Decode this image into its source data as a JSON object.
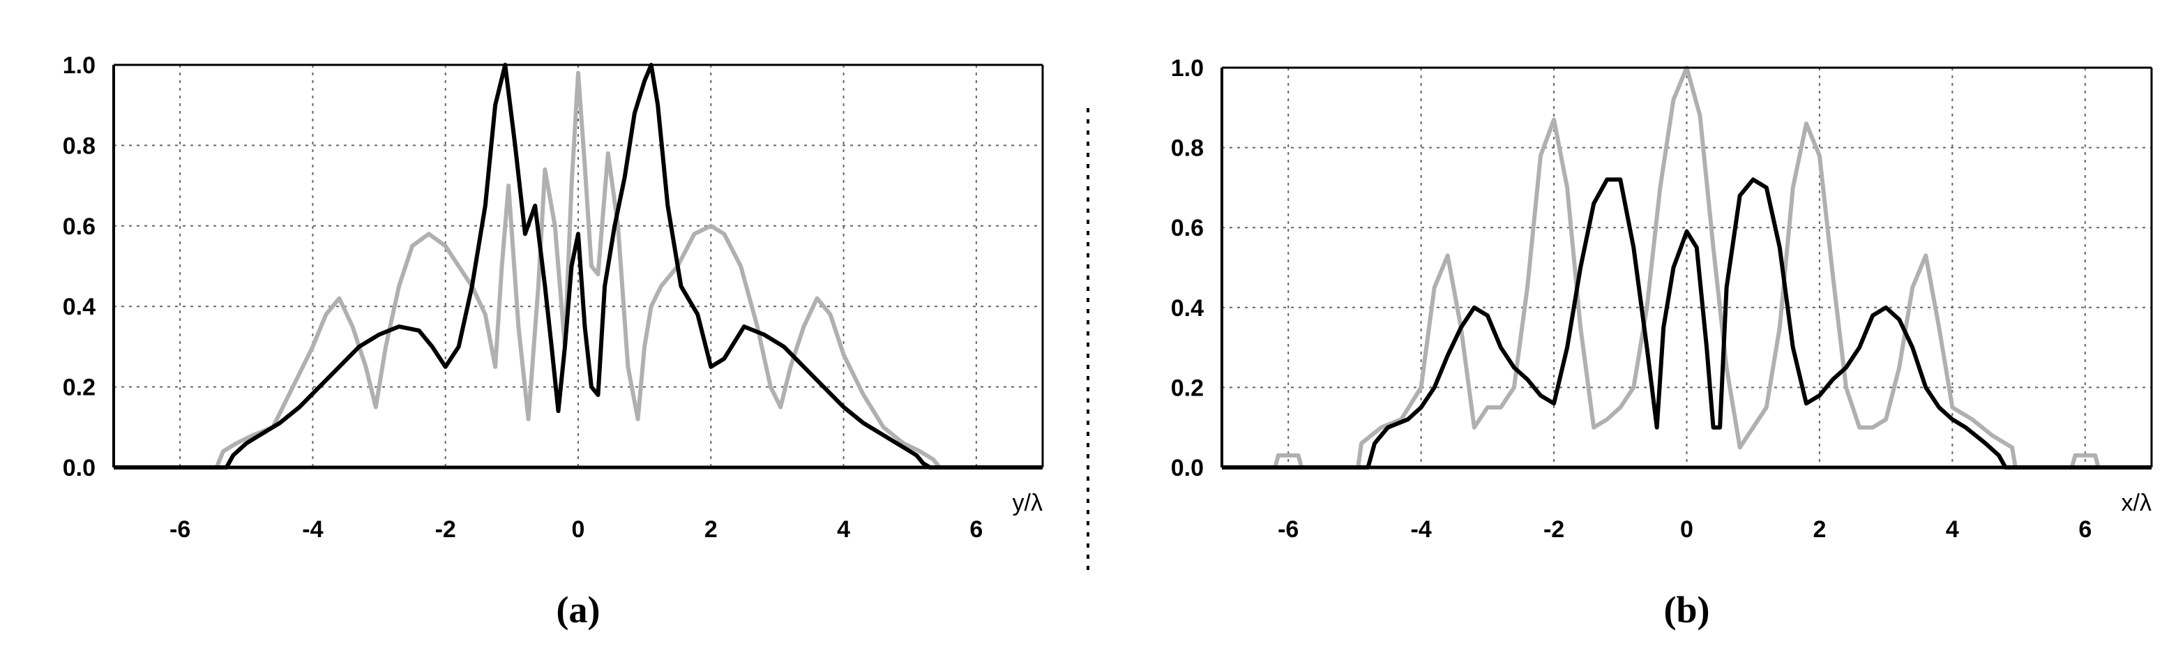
{
  "chart_data": [
    {
      "type": "line",
      "panel_label": "(a)",
      "xlabel": "y/λ",
      "ylabel": "",
      "xlim": [
        -7,
        7
      ],
      "ylim": [
        0,
        1
      ],
      "xticks": [
        -6,
        -4,
        -2,
        0,
        2,
        4,
        6
      ],
      "xtick_labels": [
        "-6",
        "-4",
        "-2",
        "0",
        "2",
        "4",
        "6"
      ],
      "yticks": [
        0,
        0.2,
        0.4,
        0.6,
        0.8,
        1.0
      ],
      "ytick_labels": [
        "0.0",
        "0.2",
        "0.4",
        "0.6",
        "0.8",
        "1.0"
      ],
      "grid": true,
      "series": [
        {
          "color": "#000000",
          "x": [
            -7,
            -5.3,
            -5.2,
            -5.0,
            -4.8,
            -4.5,
            -4.2,
            -3.9,
            -3.6,
            -3.3,
            -3.0,
            -2.7,
            -2.4,
            -2.2,
            -2.0,
            -1.8,
            -1.6,
            -1.4,
            -1.25,
            -1.1,
            -0.95,
            -0.8,
            -0.65,
            -0.5,
            -0.4,
            -0.3,
            -0.2,
            -0.1,
            0.0,
            0.1,
            0.2,
            0.3,
            0.4,
            0.55,
            0.7,
            0.85,
            1.0,
            1.1,
            1.2,
            1.35,
            1.55,
            1.8,
            2.0,
            2.2,
            2.5,
            2.8,
            3.1,
            3.4,
            3.7,
            4.0,
            4.3,
            4.6,
            4.9,
            5.1,
            5.2,
            5.3,
            7
          ],
          "y": [
            0,
            0,
            0.03,
            0.06,
            0.08,
            0.11,
            0.15,
            0.2,
            0.25,
            0.3,
            0.33,
            0.35,
            0.34,
            0.3,
            0.25,
            0.3,
            0.45,
            0.65,
            0.9,
            1.0,
            0.8,
            0.58,
            0.65,
            0.45,
            0.3,
            0.14,
            0.3,
            0.5,
            0.58,
            0.35,
            0.2,
            0.18,
            0.45,
            0.6,
            0.72,
            0.88,
            0.96,
            1.0,
            0.9,
            0.65,
            0.45,
            0.38,
            0.25,
            0.27,
            0.35,
            0.33,
            0.3,
            0.25,
            0.2,
            0.15,
            0.11,
            0.08,
            0.05,
            0.03,
            0.01,
            0,
            0
          ]
        },
        {
          "color": "#b0b0b0",
          "x": [
            -7,
            -5.45,
            -5.35,
            -5.15,
            -4.9,
            -4.6,
            -4.3,
            -4.0,
            -3.8,
            -3.6,
            -3.4,
            -3.2,
            -3.05,
            -2.9,
            -2.7,
            -2.5,
            -2.25,
            -2.0,
            -1.8,
            -1.6,
            -1.4,
            -1.25,
            -1.15,
            -1.05,
            -0.9,
            -0.75,
            -0.6,
            -0.5,
            -0.35,
            -0.2,
            -0.1,
            0.0,
            0.1,
            0.2,
            0.3,
            0.45,
            0.6,
            0.75,
            0.9,
            1.0,
            1.1,
            1.25,
            1.5,
            1.75,
            2.0,
            2.2,
            2.45,
            2.7,
            2.9,
            3.05,
            3.2,
            3.4,
            3.6,
            3.8,
            4.0,
            4.3,
            4.6,
            4.9,
            5.15,
            5.35,
            5.45,
            7
          ],
          "y": [
            0,
            0,
            0.04,
            0.06,
            0.08,
            0.1,
            0.2,
            0.3,
            0.38,
            0.42,
            0.35,
            0.25,
            0.15,
            0.3,
            0.45,
            0.55,
            0.58,
            0.55,
            0.5,
            0.45,
            0.38,
            0.25,
            0.5,
            0.7,
            0.35,
            0.12,
            0.45,
            0.74,
            0.6,
            0.3,
            0.7,
            0.98,
            0.75,
            0.5,
            0.48,
            0.78,
            0.6,
            0.25,
            0.12,
            0.3,
            0.4,
            0.45,
            0.5,
            0.58,
            0.6,
            0.58,
            0.5,
            0.35,
            0.2,
            0.15,
            0.25,
            0.35,
            0.42,
            0.38,
            0.28,
            0.18,
            0.1,
            0.06,
            0.04,
            0.02,
            0,
            0
          ]
        }
      ]
    },
    {
      "type": "line",
      "panel_label": "(b)",
      "xlabel": "x/λ",
      "ylabel": "",
      "xlim": [
        -7,
        7
      ],
      "ylim": [
        0,
        1
      ],
      "xticks": [
        -6,
        -4,
        -2,
        0,
        2,
        4,
        6
      ],
      "xtick_labels": [
        "-6",
        "-4",
        "-2",
        "0",
        "2",
        "4",
        "6"
      ],
      "yticks": [
        0,
        0.2,
        0.4,
        0.6,
        0.8,
        1.0
      ],
      "ytick_labels": [
        "0.0",
        "0.2",
        "0.4",
        "0.6",
        "0.8",
        "1.0"
      ],
      "grid": true,
      "series": [
        {
          "color": "#000000",
          "x": [
            -7,
            -4.8,
            -4.7,
            -4.5,
            -4.2,
            -4.0,
            -3.8,
            -3.6,
            -3.4,
            -3.2,
            -3.0,
            -2.8,
            -2.6,
            -2.4,
            -2.2,
            -2.0,
            -1.8,
            -1.6,
            -1.4,
            -1.2,
            -1.0,
            -0.8,
            -0.6,
            -0.45,
            -0.35,
            -0.2,
            0.0,
            0.15,
            0.3,
            0.4,
            0.5,
            0.6,
            0.8,
            1.0,
            1.2,
            1.4,
            1.6,
            1.8,
            2.0,
            2.2,
            2.4,
            2.6,
            2.8,
            3.0,
            3.2,
            3.4,
            3.6,
            3.8,
            4.0,
            4.2,
            4.5,
            4.7,
            4.8,
            7
          ],
          "y": [
            0,
            0,
            0.06,
            0.1,
            0.12,
            0.15,
            0.2,
            0.28,
            0.35,
            0.4,
            0.38,
            0.3,
            0.25,
            0.22,
            0.18,
            0.16,
            0.3,
            0.5,
            0.66,
            0.72,
            0.72,
            0.55,
            0.3,
            0.1,
            0.35,
            0.5,
            0.59,
            0.55,
            0.3,
            0.1,
            0.1,
            0.45,
            0.68,
            0.72,
            0.7,
            0.55,
            0.3,
            0.16,
            0.18,
            0.22,
            0.25,
            0.3,
            0.38,
            0.4,
            0.37,
            0.3,
            0.2,
            0.15,
            0.12,
            0.1,
            0.06,
            0.03,
            0,
            0
          ]
        },
        {
          "color": "#b0b0b0",
          "x": [
            -7,
            -6.2,
            -6.15,
            -5.85,
            -5.8,
            -4.95,
            -4.9,
            -4.6,
            -4.3,
            -4.0,
            -3.8,
            -3.6,
            -3.4,
            -3.2,
            -3.0,
            -2.8,
            -2.6,
            -2.4,
            -2.2,
            -2.0,
            -1.8,
            -1.6,
            -1.4,
            -1.2,
            -1.0,
            -0.8,
            -0.6,
            -0.4,
            -0.2,
            0.0,
            0.2,
            0.4,
            0.6,
            0.8,
            1.0,
            1.2,
            1.4,
            1.6,
            1.8,
            2.0,
            2.2,
            2.4,
            2.6,
            2.8,
            3.0,
            3.2,
            3.4,
            3.6,
            3.8,
            4.0,
            4.3,
            4.6,
            4.9,
            4.95,
            5.8,
            5.85,
            6.15,
            6.2,
            7
          ],
          "y": [
            0,
            0,
            0.03,
            0.03,
            0,
            0,
            0.06,
            0.1,
            0.12,
            0.2,
            0.45,
            0.53,
            0.35,
            0.1,
            0.15,
            0.15,
            0.2,
            0.45,
            0.78,
            0.87,
            0.7,
            0.35,
            0.1,
            0.12,
            0.15,
            0.2,
            0.4,
            0.7,
            0.92,
            1.0,
            0.88,
            0.55,
            0.25,
            0.05,
            0.1,
            0.15,
            0.35,
            0.7,
            0.86,
            0.78,
            0.48,
            0.2,
            0.1,
            0.1,
            0.12,
            0.25,
            0.45,
            0.53,
            0.35,
            0.15,
            0.12,
            0.08,
            0.05,
            0,
            0,
            0.03,
            0.03,
            0,
            0
          ]
        }
      ]
    }
  ]
}
